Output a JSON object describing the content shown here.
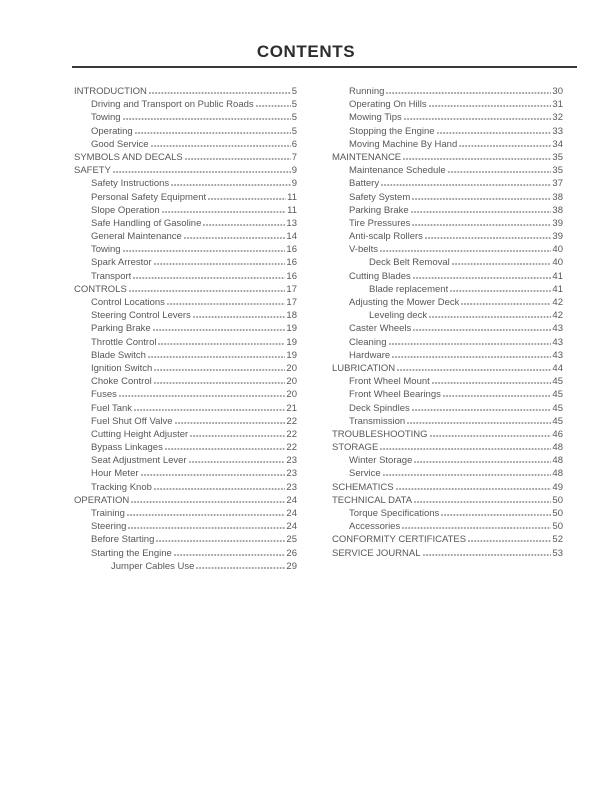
{
  "page": {
    "title": "CONTENTS"
  },
  "colors": {
    "title": "#2c2d30",
    "rule": "#38393c",
    "text": "#57585c",
    "dots": "#9c9da0"
  },
  "toc": {
    "left_column": [
      {
        "label": "INTRODUCTION",
        "page": "5",
        "level": 1
      },
      {
        "label": "Driving and Transport on Public Roads",
        "page": "5",
        "level": 2
      },
      {
        "label": "Towing",
        "page": "5",
        "level": 2
      },
      {
        "label": "Operating",
        "page": "5",
        "level": 2
      },
      {
        "label": "Good Service",
        "page": "6",
        "level": 2
      },
      {
        "label": "SYMBOLS AND DECALS",
        "page": "7",
        "level": 1
      },
      {
        "label": "SAFETY",
        "page": "9",
        "level": 1
      },
      {
        "label": "Safety Instructions",
        "page": "9",
        "level": 2
      },
      {
        "label": "Personal Safety Equipment",
        "page": "11",
        "level": 2
      },
      {
        "label": "Slope Operation",
        "page": "11",
        "level": 2
      },
      {
        "label": "Safe Handling of Gasoline",
        "page": "13",
        "level": 2
      },
      {
        "label": "General Maintenance",
        "page": "14",
        "level": 2
      },
      {
        "label": "Towing",
        "page": "16",
        "level": 2
      },
      {
        "label": "Spark Arrestor",
        "page": "16",
        "level": 2
      },
      {
        "label": "Transport",
        "page": "16",
        "level": 2
      },
      {
        "label": "CONTROLS",
        "page": "17",
        "level": 1
      },
      {
        "label": "Control Locations",
        "page": "17",
        "level": 2
      },
      {
        "label": "Steering Control Levers",
        "page": "18",
        "level": 2
      },
      {
        "label": "Parking Brake",
        "page": "19",
        "level": 2
      },
      {
        "label": "Throttle Control",
        "page": "19",
        "level": 2
      },
      {
        "label": "Blade Switch",
        "page": "19",
        "level": 2
      },
      {
        "label": "Ignition Switch",
        "page": "20",
        "level": 2
      },
      {
        "label": "Choke Control",
        "page": "20",
        "level": 2
      },
      {
        "label": "Fuses",
        "page": "20",
        "level": 2
      },
      {
        "label": "Fuel Tank",
        "page": "21",
        "level": 2
      },
      {
        "label": "Fuel Shut Off Valve",
        "page": "22",
        "level": 2
      },
      {
        "label": "Cutting Height Adjuster",
        "page": "22",
        "level": 2
      },
      {
        "label": "Bypass Linkages",
        "page": "22",
        "level": 2
      },
      {
        "label": "Seat Adjustment Lever",
        "page": "23",
        "level": 2
      },
      {
        "label": "Hour Meter",
        "page": "23",
        "level": 2
      },
      {
        "label": "Tracking Knob",
        "page": "23",
        "level": 2
      },
      {
        "label": "OPERATION",
        "page": "24",
        "level": 1
      },
      {
        "label": "Training",
        "page": "24",
        "level": 2
      },
      {
        "label": "Steering",
        "page": "24",
        "level": 2
      },
      {
        "label": "Before Starting",
        "page": "25",
        "level": 2
      },
      {
        "label": "Starting the Engine",
        "page": "26",
        "level": 2
      },
      {
        "label": "Jumper Cables Use",
        "page": "29",
        "level": 3
      }
    ],
    "right_column": [
      {
        "label": "Running",
        "page": "30",
        "level": 2
      },
      {
        "label": "Operating On Hills",
        "page": "31",
        "level": 2
      },
      {
        "label": "Mowing Tips",
        "page": "32",
        "level": 2
      },
      {
        "label": "Stopping the Engine",
        "page": "33",
        "level": 2
      },
      {
        "label": "Moving Machine By Hand",
        "page": "34",
        "level": 2
      },
      {
        "label": "MAINTENANCE",
        "page": "35",
        "level": 1
      },
      {
        "label": "Maintenance Schedule",
        "page": "35",
        "level": 2
      },
      {
        "label": "Battery",
        "page": "37",
        "level": 2
      },
      {
        "label": "Safety System",
        "page": "38",
        "level": 2
      },
      {
        "label": "Parking Brake",
        "page": "38",
        "level": 2
      },
      {
        "label": "Tire Pressures",
        "page": "39",
        "level": 2
      },
      {
        "label": "Anti-scalp Rollers",
        "page": "39",
        "level": 2
      },
      {
        "label": "V-belts",
        "page": "40",
        "level": 2
      },
      {
        "label": "Deck Belt Removal",
        "page": "40",
        "level": 3
      },
      {
        "label": "Cutting Blades",
        "page": "41",
        "level": 2
      },
      {
        "label": "Blade replacement",
        "page": "41",
        "level": 3
      },
      {
        "label": "Adjusting the Mower Deck",
        "page": "42",
        "level": 2
      },
      {
        "label": "Leveling deck",
        "page": "42",
        "level": 3
      },
      {
        "label": "Caster Wheels",
        "page": "43",
        "level": 2
      },
      {
        "label": "Cleaning",
        "page": "43",
        "level": 2
      },
      {
        "label": "Hardware",
        "page": "43",
        "level": 2
      },
      {
        "label": "LUBRICATION",
        "page": "44",
        "level": 1
      },
      {
        "label": "Front Wheel Mount",
        "page": "45",
        "level": 2
      },
      {
        "label": "Front Wheel Bearings",
        "page": "45",
        "level": 2
      },
      {
        "label": "Deck Spindles",
        "page": "45",
        "level": 2
      },
      {
        "label": "Transmission",
        "page": "45",
        "level": 2
      },
      {
        "label": "TROUBLESHOOTING",
        "page": "46",
        "level": 1
      },
      {
        "label": "STORAGE",
        "page": "48",
        "level": 1
      },
      {
        "label": "Winter Storage",
        "page": "48",
        "level": 2
      },
      {
        "label": "Service",
        "page": "48",
        "level": 2
      },
      {
        "label": "SCHEMATICS",
        "page": "49",
        "level": 1
      },
      {
        "label": "TECHNICAL DATA",
        "page": "50",
        "level": 1
      },
      {
        "label": "Torque Specifications",
        "page": "50",
        "level": 2
      },
      {
        "label": "Accessories",
        "page": "50",
        "level": 2
      },
      {
        "label": "CONFORMITY CERTIFICATES",
        "page": "52",
        "level": 1
      },
      {
        "label": "SERVICE JOURNAL",
        "page": "53",
        "level": 1
      }
    ]
  }
}
